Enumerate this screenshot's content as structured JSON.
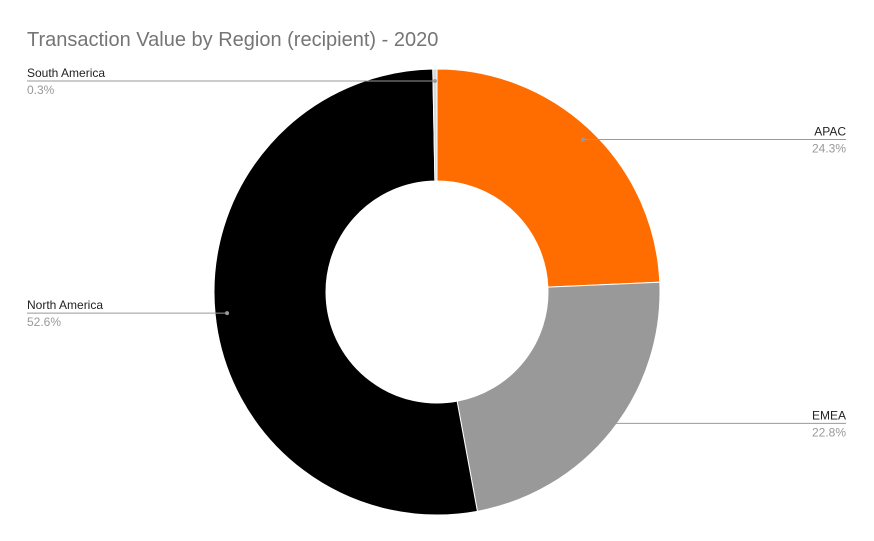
{
  "chart_data": {
    "type": "donut",
    "title": "Transaction Value by Region (recipient) - 2020",
    "categories": [
      "APAC",
      "EMEA",
      "North America",
      "South America"
    ],
    "values": [
      24.3,
      22.8,
      52.6,
      0.3
    ],
    "value_labels": [
      "24.3%",
      "22.8%",
      "52.6%",
      "0.3%"
    ],
    "colors": [
      "#ff6d01",
      "#999999",
      "#000000",
      "#d9d9d9"
    ]
  }
}
